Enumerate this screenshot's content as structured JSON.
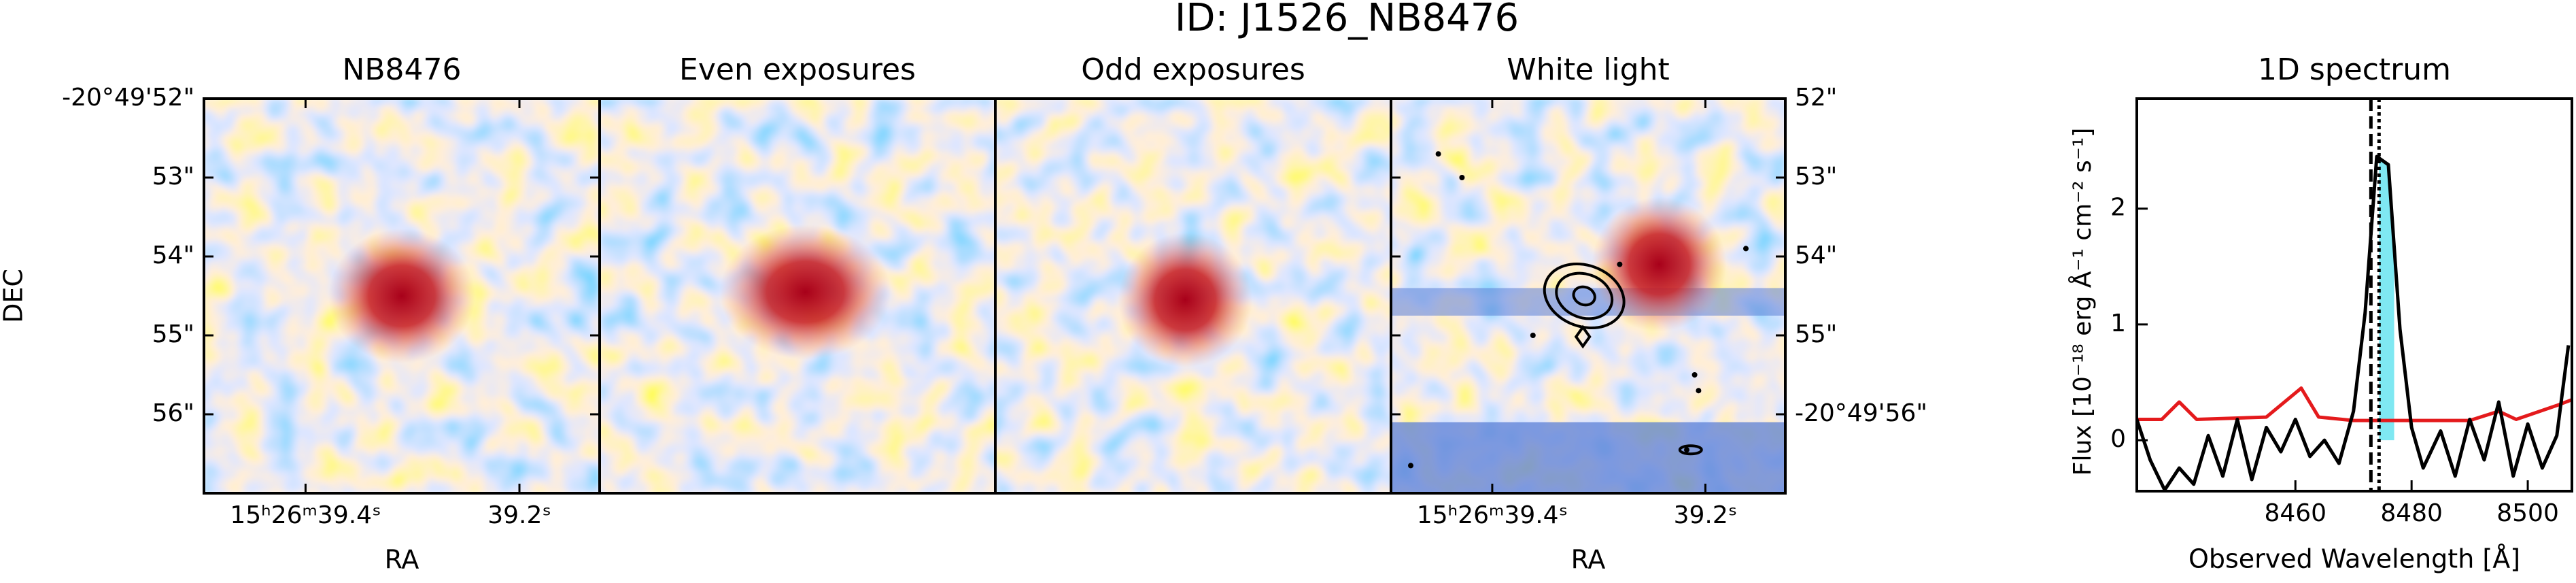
{
  "title": "ID: J1526_NB8476",
  "chart_data": [
    {
      "type": "image",
      "title": "NB8476",
      "xlabel": "RA",
      "ylabel": "DEC",
      "xlim": [
        39.495,
        39.125
      ],
      "ylim": [
        57,
        52
      ],
      "ytick_side": "left",
      "xticks": [
        {
          "value": 39.4,
          "label": "15ʰ26ᵐ39.4ˢ"
        },
        {
          "value": 39.2,
          "label": "39.2ˢ"
        }
      ],
      "yticks": [
        {
          "value": 52,
          "label": "-20°49'52\""
        },
        {
          "value": 53,
          "label": "53\""
        },
        {
          "value": 54,
          "label": "54\""
        },
        {
          "value": 55,
          "label": "55\""
        },
        {
          "value": 56,
          "label": "56\""
        }
      ]
    },
    {
      "type": "image",
      "title": "Even exposures"
    },
    {
      "type": "image",
      "title": "Odd exposures"
    },
    {
      "type": "image",
      "title": "White light",
      "xlabel": "RA",
      "xlim": [
        39.495,
        39.125
      ],
      "ylim": [
        57,
        52
      ],
      "ytick_side": "right",
      "xticks": [
        {
          "value": 39.4,
          "label": "15ʰ26ᵐ39.4ˢ"
        },
        {
          "value": 39.2,
          "label": "39.2ˢ"
        }
      ],
      "yticks": [
        {
          "value": 52,
          "label": "52\""
        },
        {
          "value": 53,
          "label": "53\""
        },
        {
          "value": 54,
          "label": "54\""
        },
        {
          "value": 55,
          "label": "55\""
        },
        {
          "value": 56,
          "label": "-20°49'56\""
        }
      ]
    },
    {
      "type": "line",
      "title": "1D spectrum",
      "xlabel": "Observed Wavelength [Å]",
      "ylabel": "Flux [10⁻¹⁸ erg Å⁻¹ cm⁻² s⁻¹]",
      "xlim": [
        8432.7,
        8507.6
      ],
      "ylim": [
        -0.44,
        2.95
      ],
      "xticks": [
        8460,
        8480,
        8500
      ],
      "yticks": [
        0,
        1,
        2
      ],
      "series": [
        {
          "color": "#000000",
          "x": [
            8432.7,
            8435,
            8437.5,
            8440,
            8442.5,
            8445,
            8447.5,
            8450,
            8452.5,
            8455,
            8457.5,
            8460,
            8462.5,
            8465,
            8467.5,
            8470,
            8472,
            8474,
            8476,
            8478,
            8480,
            8482,
            8485,
            8487.5,
            8490,
            8492.5,
            8495,
            8497.5,
            8500,
            8502.5,
            8505,
            8507
          ],
          "values": [
            0.18,
            -0.17,
            -0.43,
            -0.24,
            -0.38,
            0.04,
            -0.31,
            0.18,
            -0.34,
            0.11,
            -0.1,
            0.18,
            -0.14,
            0,
            -0.2,
            0.25,
            1.1,
            2.45,
            2.38,
            0.96,
            0.11,
            -0.24,
            0.08,
            -0.31,
            0.18,
            -0.17,
            0.33,
            -0.31,
            0.14,
            -0.24,
            0.04,
            0.82
          ]
        },
        {
          "color": "#e41a1c",
          "x": [
            8432.7,
            8437,
            8440,
            8443,
            8455,
            8461,
            8464,
            8470,
            8480,
            8490,
            8495,
            8498,
            8505,
            8507.6
          ],
          "values": [
            0.18,
            0.18,
            0.33,
            0.18,
            0.2,
            0.45,
            0.2,
            0.17,
            0.17,
            0.17,
            0.25,
            0.18,
            0.3,
            0.35
          ]
        }
      ],
      "vlines": [
        {
          "x": 8473,
          "style": "dashed"
        },
        {
          "x": 8474.4,
          "style": "dotted"
        }
      ],
      "span": {
        "x": [
          8474.4,
          8477
        ],
        "color": "#7fe8f2"
      }
    }
  ]
}
